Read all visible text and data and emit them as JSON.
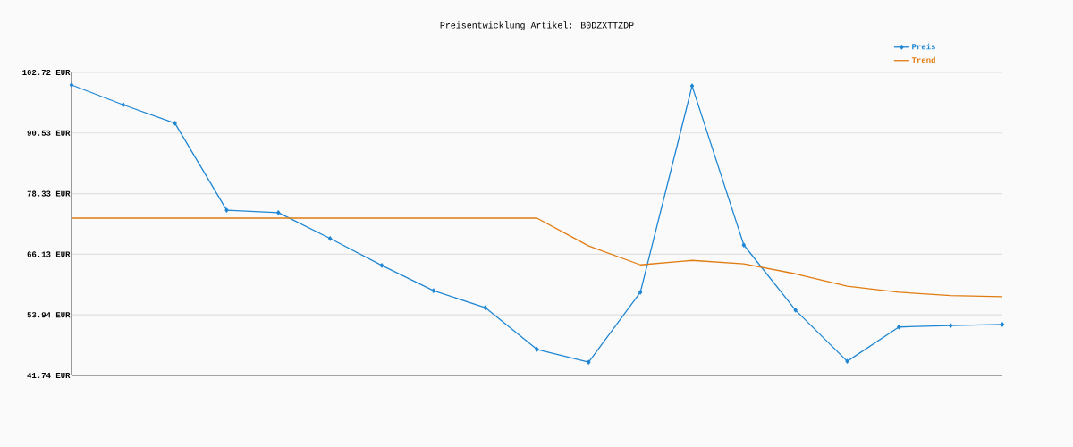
{
  "chart_data": {
    "type": "line",
    "title": "Preisentwicklung Artikel: B0DZXTTZDP",
    "categories": [
      null,
      null,
      null,
      null,
      null,
      null,
      null,
      null,
      null,
      null,
      null,
      null,
      null,
      null,
      null,
      null,
      null,
      null,
      null
    ],
    "series": [
      {
        "name": "Preis",
        "color": "#1f86d3",
        "marker": "diamond",
        "values": [
          100.2,
          96.2,
          92.5,
          75.0,
          74.5,
          69.3,
          63.9,
          58.8,
          55.4,
          47.0,
          44.4,
          58.5,
          100.0,
          68.0,
          54.9,
          44.6,
          51.5,
          51.8,
          52.0
        ]
      },
      {
        "name": "Trend",
        "color": "#e07b10",
        "marker": "none",
        "values": [
          73.4,
          73.4,
          73.4,
          73.4,
          73.4,
          73.4,
          73.4,
          73.4,
          73.4,
          73.4,
          67.8,
          64.0,
          64.9,
          64.2,
          62.2,
          59.7,
          58.5,
          57.8,
          57.6
        ]
      }
    ],
    "ylim": [
      41.74,
      102.72
    ],
    "yticks": [
      {
        "value": 41.74,
        "label": "41.74 EUR"
      },
      {
        "value": 53.94,
        "label": "53.94 EUR"
      },
      {
        "value": 66.13,
        "label": "66.13 EUR"
      },
      {
        "value": 78.33,
        "label": "78.33 EUR"
      },
      {
        "value": 90.53,
        "label": "90.53 EUR"
      },
      {
        "value": 102.72,
        "label": "102.72 EUR"
      }
    ],
    "grid": "y",
    "legend": "top right",
    "line_style": "solid"
  }
}
